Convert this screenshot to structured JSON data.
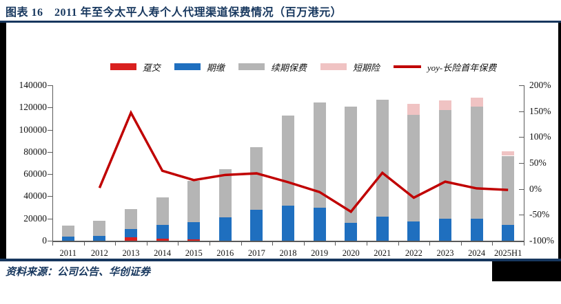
{
  "title": "图表 16　2011 年至今太平人寿个人代理渠道保费情况（百万港元）",
  "source": "资料来源：公司公告、华创证券",
  "colors": {
    "navy": "#17375E",
    "single_pay_red": "#D9201F",
    "regular_pay_blue": "#1F6FBF",
    "renewal_gray": "#B5B5B5",
    "short_term_pink": "#F0C3C3",
    "yoy_line_red": "#C00000",
    "axis_gray": "#595959",
    "page_edge_black": "#000000"
  },
  "chart_data": {
    "type": "bar",
    "subtype": "stacked-bars-with-line",
    "title": "2011 年至今太平人寿个人代理渠道保费情况（百万港元）",
    "categories": [
      "2011",
      "2012",
      "2013",
      "2014",
      "2015",
      "2016",
      "2017",
      "2018",
      "2019",
      "2020",
      "2021",
      "2022",
      "2023",
      "2024",
      "2025H1"
    ],
    "series": [
      {
        "name": "趸交",
        "type": "bar",
        "color": "#D9201F",
        "values": [
          0,
          0,
          2900,
          1700,
          1000,
          0,
          0,
          0,
          0,
          0,
          0,
          0,
          0,
          0,
          0
        ]
      },
      {
        "name": "期缴",
        "type": "bar",
        "color": "#1F6FBF",
        "values": [
          4000,
          4200,
          7700,
          12600,
          16000,
          21300,
          28000,
          31300,
          29900,
          16200,
          21400,
          17600,
          19900,
          19900,
          14100
        ]
      },
      {
        "name": "续期保费",
        "type": "bar",
        "color": "#B5B5B5",
        "values": [
          9700,
          13800,
          18000,
          24700,
          37000,
          43200,
          56400,
          81500,
          94700,
          104300,
          105500,
          95600,
          97500,
          100600,
          62400
        ]
      },
      {
        "name": "短期险",
        "type": "bar",
        "color": "#F0C3C3",
        "values": [
          0,
          0,
          0,
          0,
          0,
          0,
          0,
          0,
          0,
          0,
          0,
          9800,
          8900,
          8500,
          4200
        ]
      },
      {
        "name": "yoy-长险首年保费",
        "type": "line",
        "axis": "right",
        "color": "#C00000",
        "values_pct": [
          null,
          2,
          147,
          35,
          17,
          27,
          30,
          13,
          -6,
          -44,
          31,
          -17,
          14,
          1,
          -2
        ]
      }
    ],
    "left_axis": {
      "min": 0,
      "max": 140000,
      "step": 20000,
      "tick_labels": [
        "0",
        "20000",
        "40000",
        "60000",
        "80000",
        "100000",
        "120000",
        "140000"
      ]
    },
    "right_axis": {
      "min": -100,
      "max": 200,
      "step": 50,
      "format": "percent",
      "tick_labels": [
        "-100%",
        "-50%",
        "0%",
        "50%",
        "100%",
        "150%",
        "200%"
      ]
    },
    "grid": false,
    "legend_position": "top"
  }
}
